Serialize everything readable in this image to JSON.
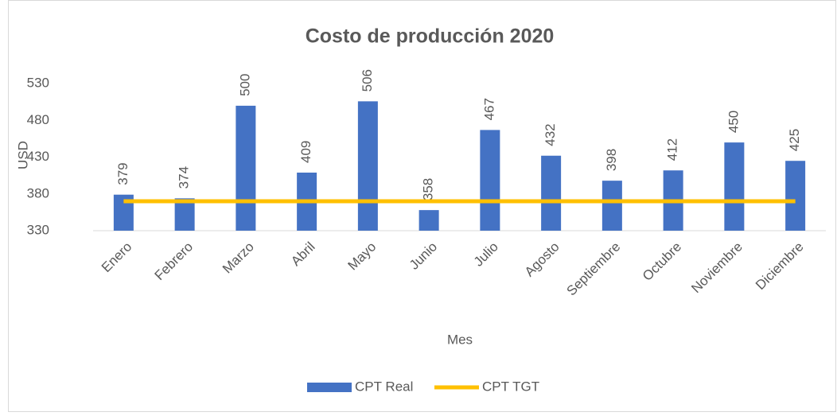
{
  "chart_data": {
    "type": "bar",
    "title": "Costo de producción 2020",
    "x_label": "Mes",
    "y_label": "USD",
    "categories": [
      "Enero",
      "Febrero",
      "Marzo",
      "Abril",
      "Mayo",
      "Junio",
      "Julio",
      "Agosto",
      "Septiembre",
      "Octubre",
      "Noviembre",
      "Diciembre"
    ],
    "series": [
      {
        "name": "CPT Real",
        "type": "bar",
        "color": "#4472c4",
        "values": [
          379,
          374,
          500,
          409,
          506,
          358,
          467,
          432,
          398,
          412,
          450,
          425
        ]
      },
      {
        "name": "CPT TGT",
        "type": "line",
        "color": "#ffc000",
        "values": [
          370,
          370,
          370,
          370,
          370,
          370,
          370,
          370,
          370,
          370,
          370,
          370
        ]
      }
    ],
    "ylim": [
      330,
      580
    ],
    "yticks": [
      330,
      380,
      430,
      480,
      530
    ],
    "grid": false,
    "legend": "bottom"
  }
}
